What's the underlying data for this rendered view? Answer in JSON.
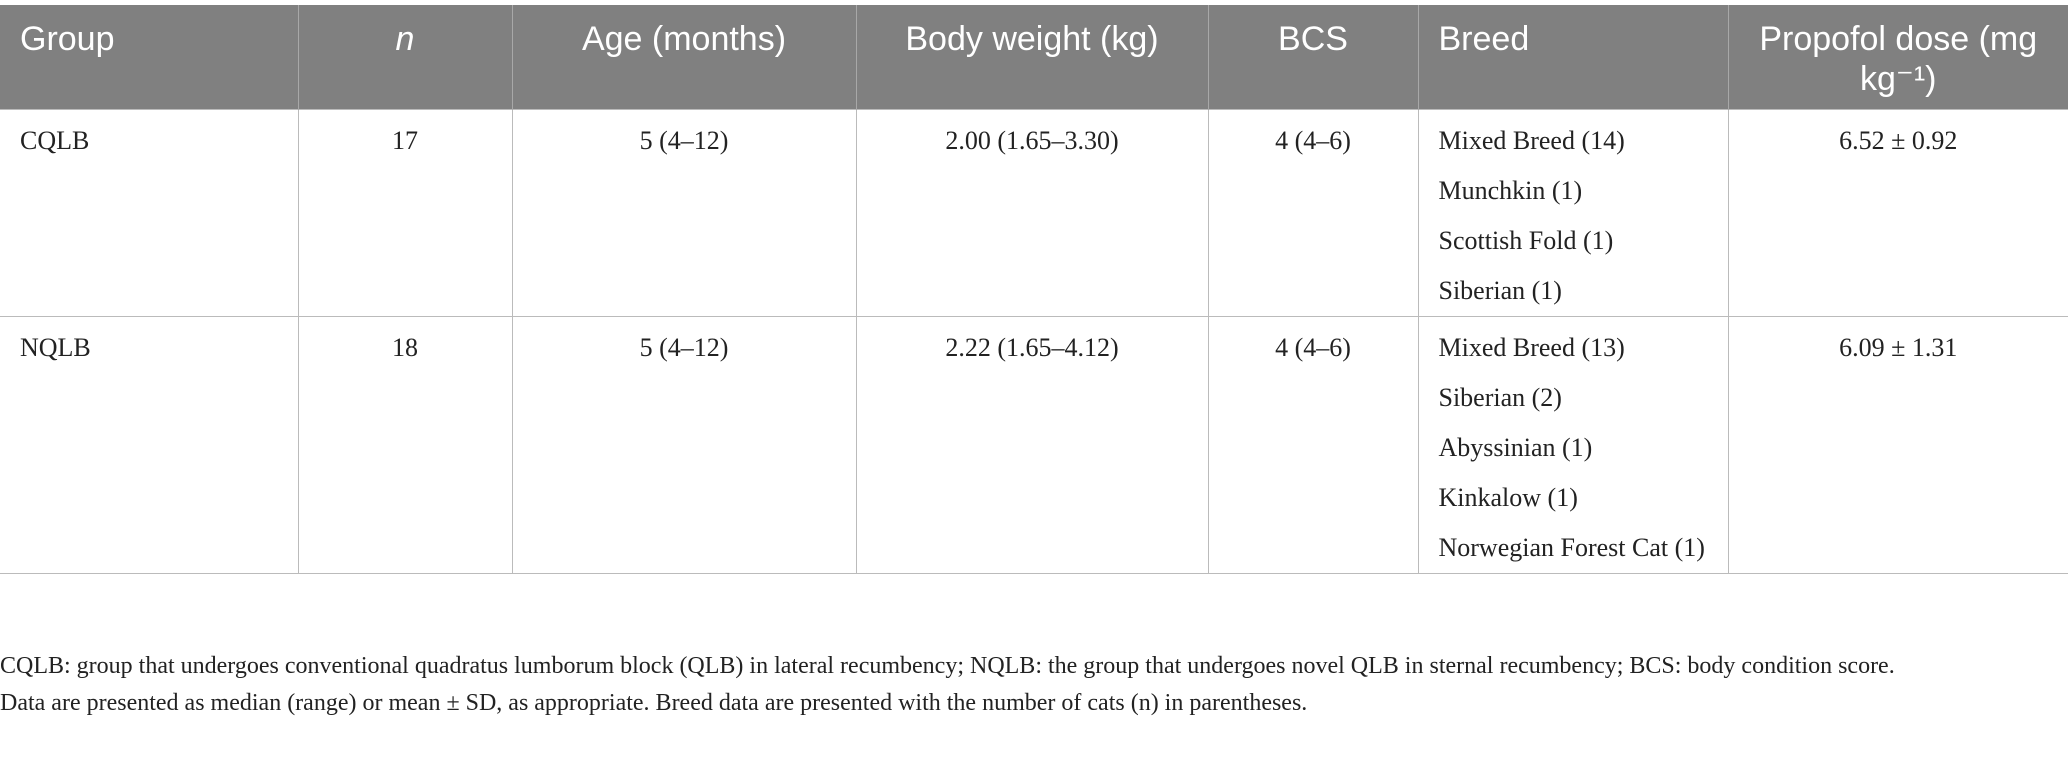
{
  "table": {
    "headers": [
      "Group",
      "n",
      "Age (months)",
      "Body weight (kg)",
      "BCS",
      "Breed",
      "Propofol dose (mg kg⁻¹)"
    ],
    "rows": [
      [
        "CQLB",
        "17",
        "5 (4–12)",
        "2.00 (1.65–3.30)",
        "4 (4–6)",
        [
          "Mixed Breed (14)",
          "Munchkin (1)",
          "Scottish Fold (1)",
          "Siberian (1)"
        ],
        "6.52 ± 0.92"
      ],
      [
        "NQLB",
        "18",
        "5 (4–12)",
        "2.22 (1.65–4.12)",
        "4 (4–6)",
        [
          "Mixed Breed (13)",
          "Siberian (2)",
          "Abyssinian (1)",
          "Kinkalow (1)",
          "Norwegian Forest Cat (1)"
        ],
        "6.09 ± 1.31"
      ]
    ]
  },
  "footnotes": [
    "CQLB: group that undergoes conventional quadratus lumborum block (QLB) in lateral recumbency; NQLB: the group that undergoes novel QLB in sternal recumbency; BCS: body condition score.",
    "Data are presented as median (range) or mean ± SD, as appropriate. Breed data are presented with the number of cats (n) in parentheses."
  ]
}
